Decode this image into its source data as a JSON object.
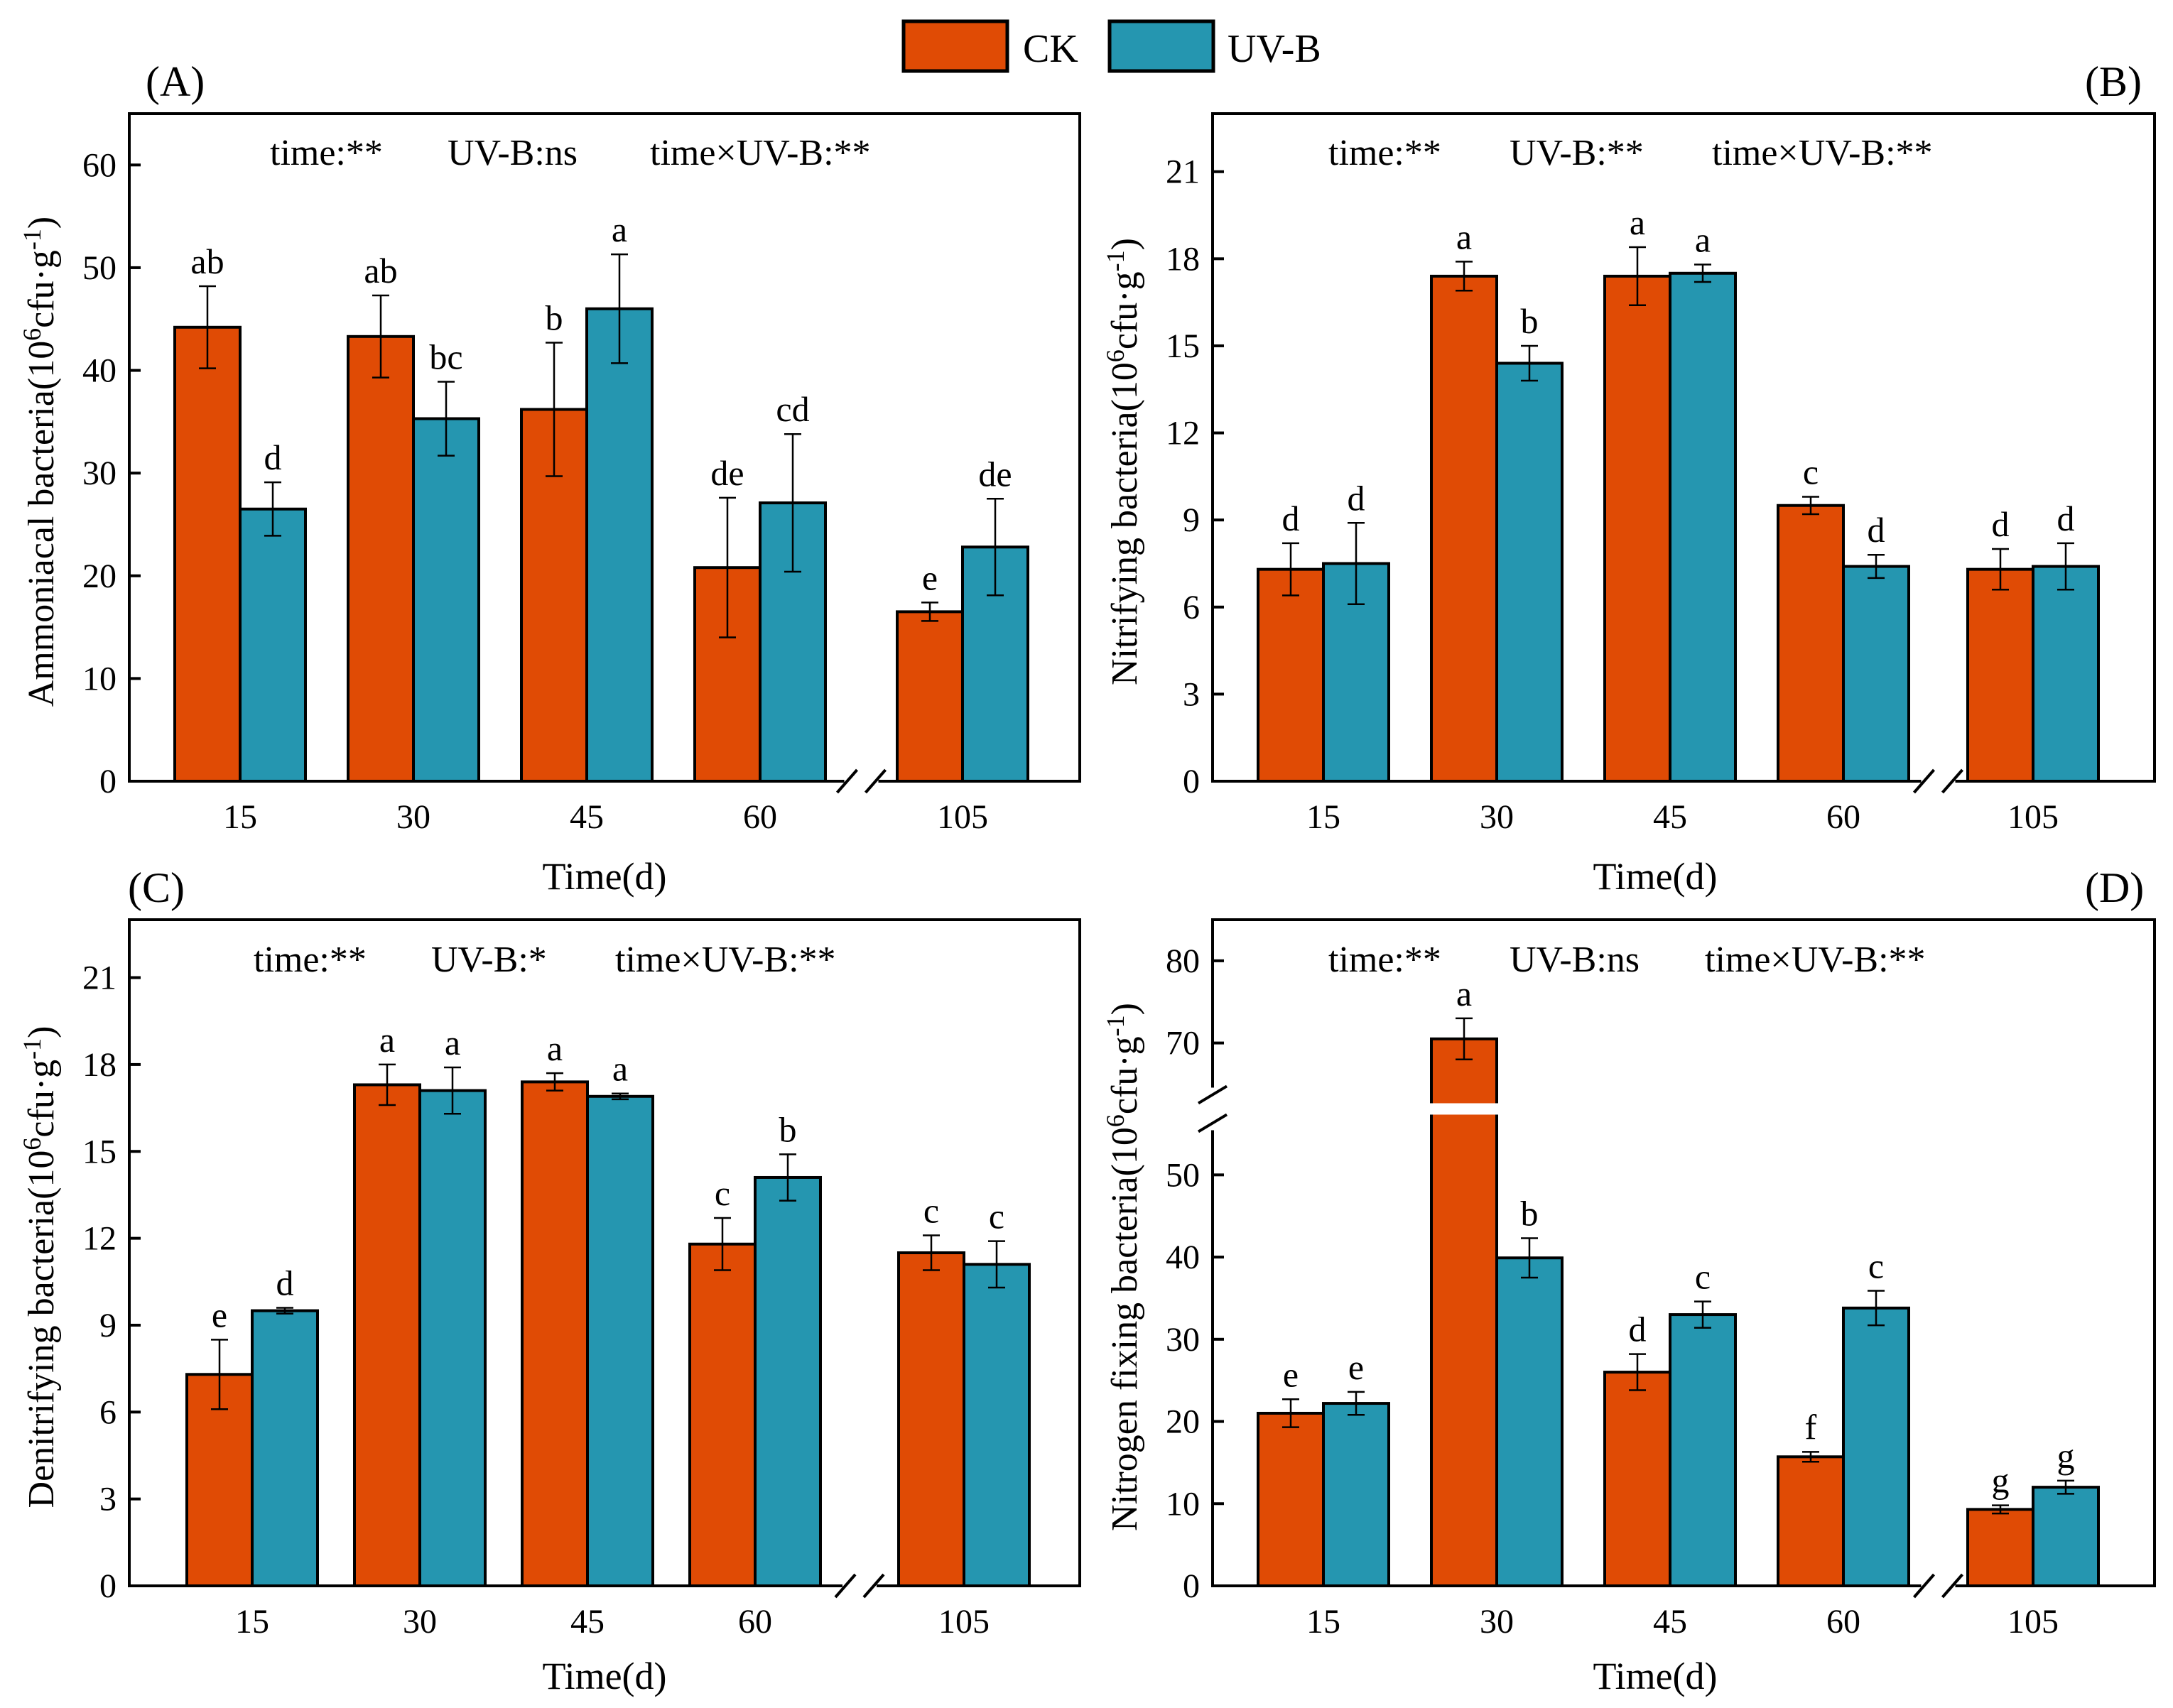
{
  "legend": {
    "items": [
      {
        "label": "CK",
        "color": "#E04B05"
      },
      {
        "label": "UV-B",
        "color": "#2596B0"
      }
    ]
  },
  "colors": {
    "ck": "#E04B05",
    "uvb": "#2596B0",
    "axis": "#000000"
  },
  "chart_data": [
    {
      "type": "bar",
      "panel_label": "(A)",
      "stats_text": [
        "time:**",
        "UV-B:ns",
        "time×UV-B:**"
      ],
      "ylabel_prefix": "Ammoniacal bacteria(10",
      "ylabel_exp": "6",
      "ylabel_mid": "cfu·g",
      "ylabel_exp2": "-1",
      "ylabel_suffix": ")",
      "xlabel": "Time(d)",
      "categories": [
        "15",
        "30",
        "45",
        "60",
        "105"
      ],
      "axis_break_before_last": true,
      "ylim": [
        0,
        65
      ],
      "yticks": [
        0,
        10,
        20,
        30,
        40,
        50,
        60
      ],
      "series": [
        {
          "name": "CK",
          "values": [
            44.2,
            43.3,
            36.2,
            20.8,
            16.5
          ],
          "errors": [
            4.0,
            4.0,
            6.5,
            6.8,
            0.9
          ],
          "letters": [
            "ab",
            "ab",
            "b",
            "de",
            "e"
          ]
        },
        {
          "name": "UV-B",
          "values": [
            26.5,
            35.3,
            46.0,
            27.1,
            22.8
          ],
          "errors": [
            2.6,
            3.6,
            5.3,
            6.7,
            4.7
          ],
          "letters": [
            "d",
            "bc",
            "a",
            "cd",
            "de"
          ]
        }
      ]
    },
    {
      "type": "bar",
      "panel_label": "(B)",
      "stats_text": [
        "time:**",
        "UV-B:**",
        "time×UV-B:**"
      ],
      "ylabel_prefix": "Nitrifying bacteria(10",
      "ylabel_exp": "6",
      "ylabel_mid": "cfu·g",
      "ylabel_exp2": "-1",
      "ylabel_suffix": ")",
      "xlabel": "Time(d)",
      "categories": [
        "15",
        "30",
        "45",
        "60",
        "105"
      ],
      "axis_break_before_last": true,
      "ylim": [
        0,
        23
      ],
      "yticks": [
        0,
        3,
        6,
        9,
        12,
        15,
        18,
        21
      ],
      "series": [
        {
          "name": "CK",
          "values": [
            7.3,
            17.4,
            17.4,
            9.5,
            7.3
          ],
          "errors": [
            0.9,
            0.5,
            1.0,
            0.3,
            0.7
          ],
          "letters": [
            "d",
            "a",
            "a",
            "c",
            "d"
          ]
        },
        {
          "name": "UV-B",
          "values": [
            7.5,
            14.4,
            17.5,
            7.4,
            7.4
          ],
          "errors": [
            1.4,
            0.6,
            0.3,
            0.4,
            0.8
          ],
          "letters": [
            "d",
            "b",
            "a",
            "d",
            "d"
          ]
        }
      ]
    },
    {
      "type": "bar",
      "panel_label": "(C)",
      "stats_text": [
        "time:**",
        "UV-B:*",
        "time×UV-B:**"
      ],
      "ylabel_prefix": "Denitrifying bacteria(10",
      "ylabel_exp": "6",
      "ylabel_mid": "cfu·g",
      "ylabel_exp2": "-1",
      "ylabel_suffix": ")",
      "xlabel": "Time(d)",
      "categories": [
        "15",
        "30",
        "45",
        "60",
        "105"
      ],
      "axis_break_before_last": true,
      "ylim": [
        0,
        23
      ],
      "yticks": [
        0,
        3,
        6,
        9,
        12,
        15,
        18,
        21
      ],
      "series": [
        {
          "name": "CK",
          "values": [
            7.3,
            17.3,
            17.4,
            11.8,
            11.5
          ],
          "errors": [
            1.2,
            0.7,
            0.3,
            0.9,
            0.6
          ],
          "letters": [
            "e",
            "a",
            "a",
            "c",
            "c"
          ]
        },
        {
          "name": "UV-B",
          "values": [
            9.5,
            17.1,
            16.9,
            14.1,
            11.1
          ],
          "errors": [
            0.1,
            0.8,
            0.1,
            0.8,
            0.8
          ],
          "letters": [
            "d",
            "a",
            "a",
            "b",
            "c"
          ]
        }
      ]
    },
    {
      "type": "bar",
      "panel_label": "(D)",
      "stats_text": [
        "time:**",
        "UV-B:ns",
        "time×UV-B:**"
      ],
      "ylabel_prefix": "Nitrogen fixing bacteria(10",
      "ylabel_exp": "6",
      "ylabel_mid": "cfu·g",
      "ylabel_exp2": "-1",
      "ylabel_suffix": ")",
      "xlabel": "Time(d)",
      "categories": [
        "15",
        "30",
        "45",
        "60",
        "105"
      ],
      "axis_break_before_last": true,
      "y_axis_break": [
        55,
        65
      ],
      "ylim": [
        0,
        85
      ],
      "yticks": [
        0,
        10,
        20,
        30,
        40,
        50,
        70,
        80
      ],
      "series": [
        {
          "name": "CK",
          "values": [
            21.0,
            70.5,
            26.0,
            15.7,
            9.3
          ],
          "errors": [
            1.7,
            2.5,
            2.2,
            0.6,
            0.5
          ],
          "letters": [
            "e",
            "a",
            "d",
            "f",
            "g"
          ]
        },
        {
          "name": "UV-B",
          "values": [
            22.2,
            39.9,
            33.0,
            33.8,
            12.0
          ],
          "errors": [
            1.4,
            2.4,
            1.6,
            2.1,
            0.8
          ],
          "letters": [
            "e",
            "b",
            "c",
            "c",
            "g"
          ]
        }
      ]
    }
  ]
}
